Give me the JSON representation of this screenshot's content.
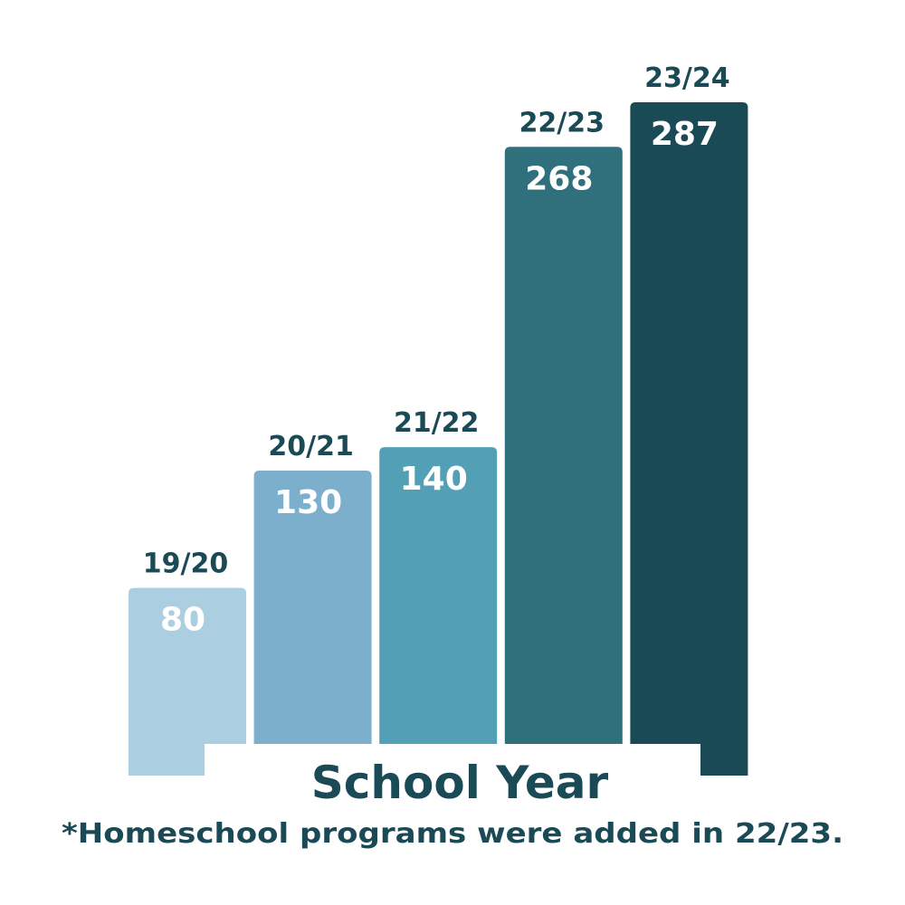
{
  "chart_data": {
    "type": "bar",
    "categories": [
      "19/20",
      "20/21",
      "21/22",
      "22/23",
      "23/24"
    ],
    "values": [
      80,
      130,
      140,
      268,
      287
    ],
    "colors": [
      "#abcfe0",
      "#7bafcc",
      "#53a0b6",
      "#30707d",
      "#1a4a55"
    ],
    "x_label": "School Year",
    "note": "*Homeschool programs were added in 22/23."
  }
}
